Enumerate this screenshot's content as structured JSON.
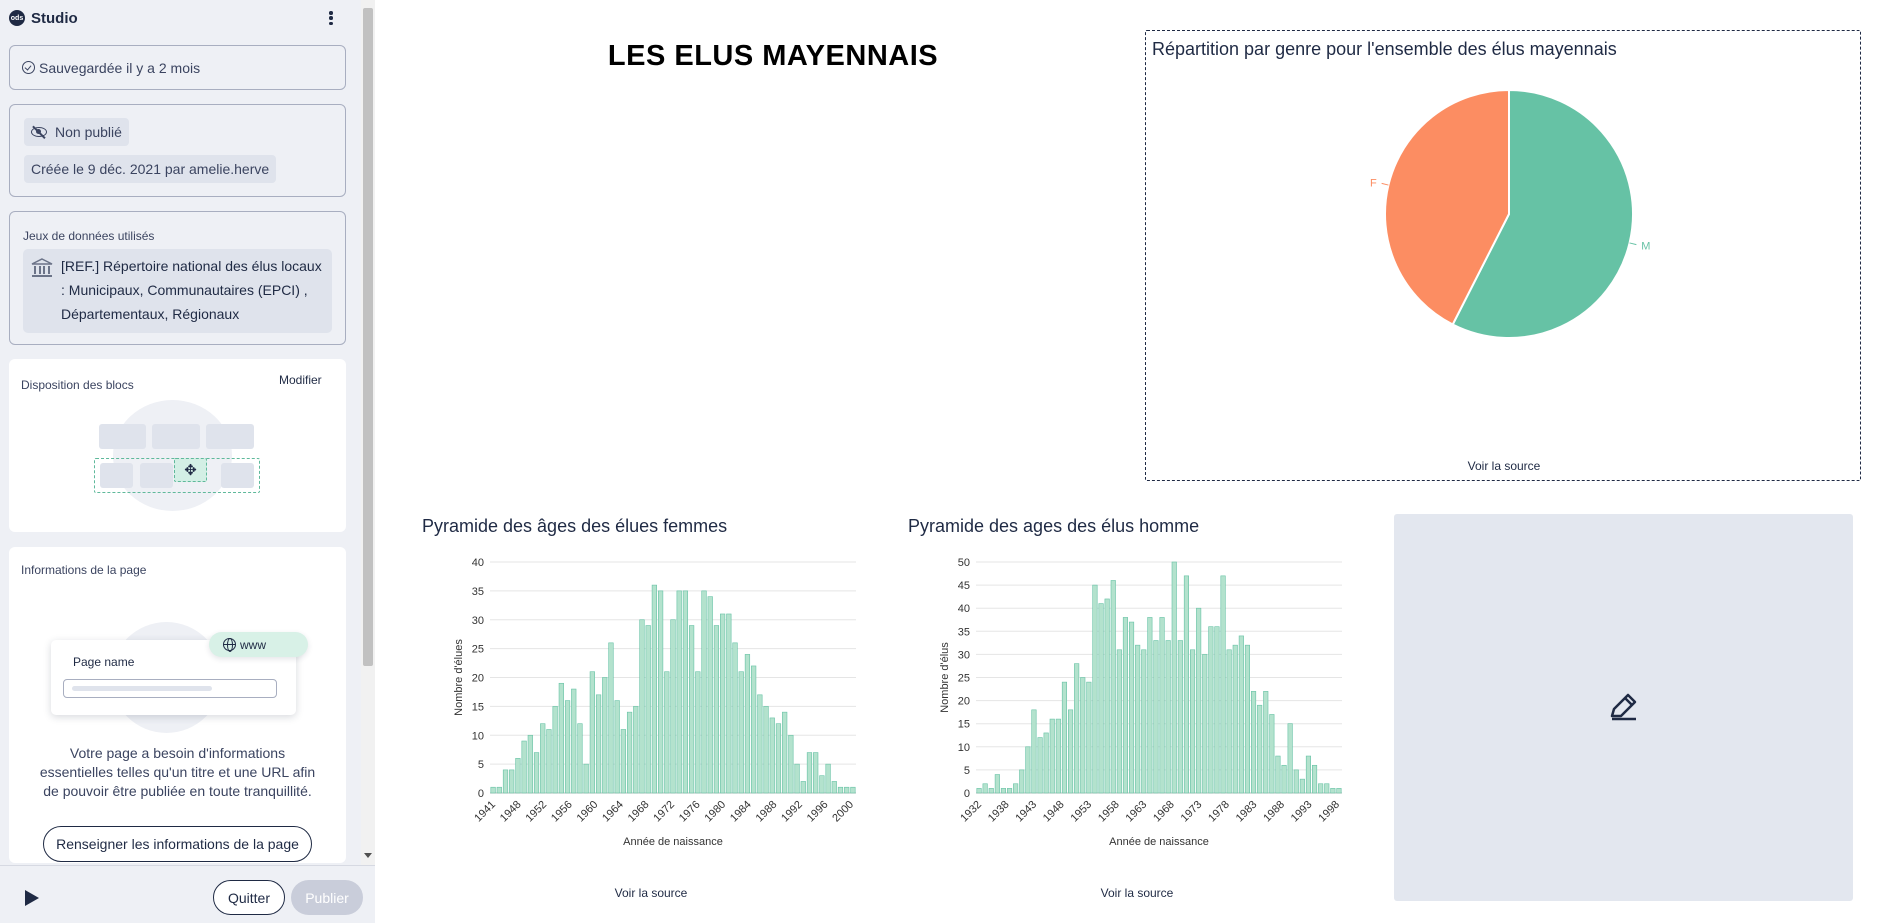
{
  "sidebar": {
    "logo_text": "ods",
    "studio_label": "Studio",
    "save_status": "Sauvegardée il y a 2 mois",
    "publish_status": "Non publié",
    "created_info": "Créée le 9 déc. 2021 par amelie.herve",
    "datasets_title": "Jeux de données utilisés",
    "dataset_lines": [
      "[REF.] Répertoire national des élus locaux",
      ": Municipaux, Communautaires (EPCI) ,",
      "Départementaux, Régionaux"
    ],
    "layout_title": "Disposition des blocs",
    "layout_modify": "Modifier",
    "info_title": "Informations de la page",
    "page_name_label": "Page name",
    "www_label": "www",
    "info_text_lines": [
      "Votre page a besoin d'informations",
      "essentielles telles qu'un titre et une URL afin",
      "de pouvoir être publiée en toute tranquillité."
    ],
    "fill_info_button": "Renseigner les informations de la page",
    "quit_button": "Quitter",
    "publish_button": "Publier"
  },
  "main": {
    "title": "LES ELUS MAYENNAIS",
    "source_label": "Voir la source"
  },
  "colors": {
    "navy": "#1f2a44",
    "female": "#fc8d62",
    "male": "#66c2a5",
    "bar_fill": "#b3e2cd",
    "bar_stroke": "#66c2a5"
  },
  "chart_data": [
    {
      "type": "pie",
      "title": "Répartition par genre pour l'ensemble des élus mayennais",
      "labels": [
        "F",
        "M"
      ],
      "values": [
        42.5,
        57.5
      ],
      "colors": [
        "#fc8d62",
        "#66c2a5"
      ]
    },
    {
      "type": "bar",
      "title": "Pyramide des âges des élues femmes",
      "xlabel": "Année de naissance",
      "ylabel": "Nombre d'élues",
      "ylim": [
        0,
        40
      ],
      "yticks": [
        0,
        5,
        10,
        15,
        20,
        25,
        30,
        35,
        40
      ],
      "xtick_labels": [
        "1941",
        "1948",
        "1952",
        "1956",
        "1960",
        "1964",
        "1968",
        "1972",
        "1976",
        "1980",
        "1984",
        "1988",
        "1992",
        "1996",
        "2000"
      ],
      "values": [
        1,
        1,
        4,
        4,
        6,
        9,
        10,
        7,
        12,
        11,
        15,
        19,
        16,
        18,
        12,
        5,
        21,
        17,
        20,
        26,
        16,
        11,
        14,
        15,
        30,
        29,
        36,
        35,
        21,
        30,
        35,
        35,
        29,
        21,
        35,
        34,
        29,
        31,
        31,
        26,
        21,
        24,
        22,
        17,
        15,
        13,
        12,
        14,
        10,
        5,
        2,
        7,
        7,
        3,
        5,
        2,
        1,
        1,
        1
      ]
    },
    {
      "type": "bar",
      "title": "Pyramide des ages des élus homme",
      "xlabel": "Année de naissance",
      "ylabel": "Nombre d'élus",
      "ylim": [
        0,
        50
      ],
      "yticks": [
        0,
        5,
        10,
        15,
        20,
        25,
        30,
        35,
        40,
        45,
        50
      ],
      "xtick_labels": [
        "1932",
        "1938",
        "1943",
        "1948",
        "1953",
        "1958",
        "1963",
        "1968",
        "1973",
        "1978",
        "1983",
        "1988",
        "1993",
        "1998"
      ],
      "values": [
        1,
        2,
        1,
        4,
        1,
        1,
        2,
        5,
        10,
        18,
        12,
        13,
        16,
        16,
        24,
        18,
        28,
        25,
        24,
        45,
        41,
        42,
        46,
        31,
        38,
        37,
        32,
        31,
        38,
        33,
        38,
        33,
        50,
        33,
        47,
        31,
        40,
        30,
        36,
        36,
        47,
        31,
        32,
        34,
        32,
        22,
        19,
        22,
        17,
        8,
        6,
        15,
        5,
        3,
        8,
        6,
        2,
        2,
        1,
        1
      ]
    }
  ]
}
